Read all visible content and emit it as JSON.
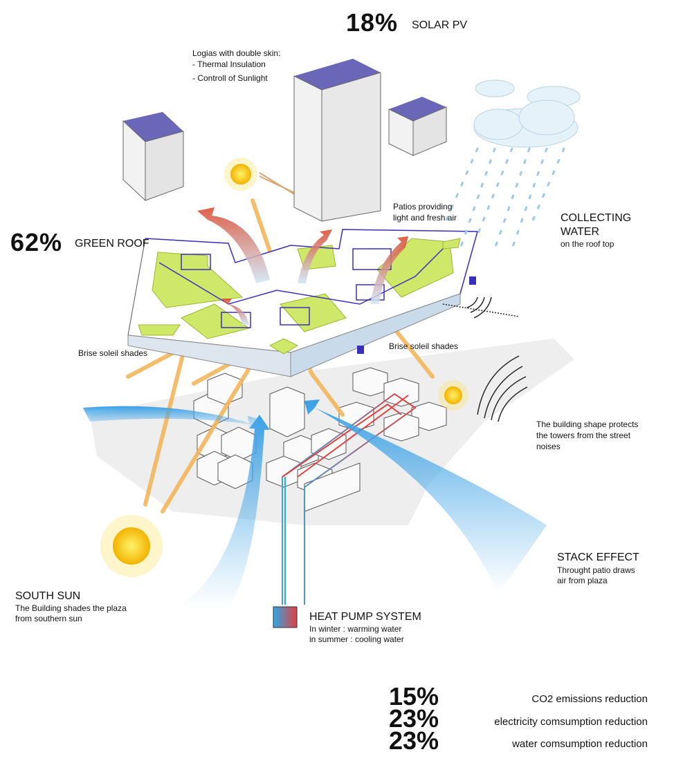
{
  "solar_pv": {
    "percent": "18%",
    "label": "SOLAR PV"
  },
  "green_roof": {
    "percent": "62%",
    "label": "GREEN ROOF"
  },
  "logias": {
    "title": "Logias with double skin:",
    "items": [
      "- Thermal Insulation",
      "- Controll of Sunlight"
    ]
  },
  "patios": {
    "lines": [
      "Patios providing",
      "light and fresh air"
    ]
  },
  "collecting_water": {
    "title_lines": [
      "COLLECTING",
      "WATER"
    ],
    "subtitle": "on the roof top"
  },
  "brise_soleil": {
    "left": "Brise soleil shades",
    "right": "Brise soleil shades"
  },
  "noise": {
    "lines": [
      "The building shape protects",
      "the towers from the street",
      "noises"
    ]
  },
  "stack_effect": {
    "title": "STACK EFFECT",
    "lines": [
      "Throught patio draws",
      "air from plaza"
    ]
  },
  "south_sun": {
    "title": "SOUTH SUN",
    "lines": [
      "The Building shades the plaza",
      "from southern sun"
    ]
  },
  "heat_pump": {
    "title": "HEAT PUMP SYSTEM",
    "lines": [
      "In winter : warming water",
      "in summer : cooling water"
    ]
  },
  "stats": [
    {
      "percent": "15%",
      "label": "CO2 emissions reduction"
    },
    {
      "percent": "23%",
      "label": "electricity comsumption reduction"
    },
    {
      "percent": "23%",
      "label": "water comsumption reduction"
    }
  ],
  "colors": {
    "green_roof": "#cfe86a",
    "outline": "#3a2fb8",
    "sun": "#f5c31a",
    "sun_ray": "#f2b65c",
    "wind": "#5fb3ea",
    "hot_air": "#d9452b",
    "heat_cold": "#2fa8e6",
    "heat_hot": "#e04040",
    "panel": "#6a66b8"
  }
}
